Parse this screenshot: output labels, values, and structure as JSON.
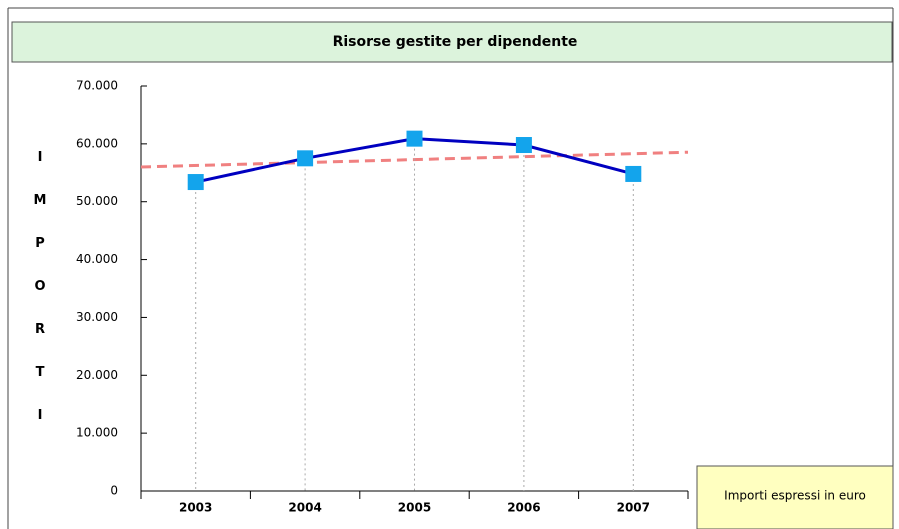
{
  "chart_data": {
    "type": "line",
    "title": "Risorse gestite per dipendente",
    "y_label": "IMPORTI",
    "note": "Importi espressi in euro",
    "categories": [
      "2003",
      "2004",
      "2005",
      "2006",
      "2007"
    ],
    "series": [
      {
        "color": "#0000c0",
        "marker_color": "#13a4ec",
        "values": [
          53400,
          57500,
          60900,
          59800,
          54800
        ]
      }
    ],
    "trend": {
      "color": "#f08080",
      "values": [
        56260,
        56770,
        57280,
        57790,
        58300
      ]
    },
    "ylim": [
      0,
      70000
    ],
    "yticks": [
      0,
      {
        "value": 10000,
        "label": "10.000"
      },
      {
        "value": 20000,
        "label": "20.000"
      },
      {
        "value": 30000,
        "label": "30.000"
      },
      {
        "value": 40000,
        "label": "40.000"
      },
      {
        "value": 50000,
        "label": "50.000"
      },
      {
        "value": 60000,
        "label": "60.000"
      },
      {
        "value": 70000,
        "label": "70.000"
      }
    ]
  }
}
